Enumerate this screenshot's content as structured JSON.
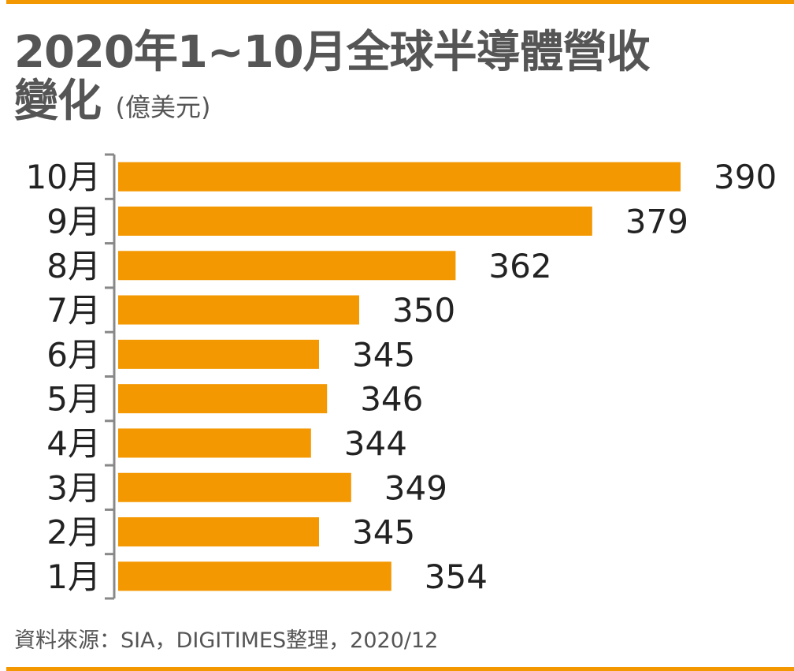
{
  "chart_data": {
    "type": "bar",
    "orientation": "horizontal",
    "title": "2020年1~10月全球半導體營收變化",
    "title_line1": "2020年1~10月全球半導體營收",
    "title_line2": "變化",
    "unit": "(億美元)",
    "categories": [
      "10月",
      "9月",
      "8月",
      "7月",
      "6月",
      "5月",
      "4月",
      "3月",
      "2月",
      "1月"
    ],
    "values": [
      390,
      379,
      362,
      350,
      345,
      346,
      344,
      349,
      345,
      354
    ],
    "xlim": [
      320,
      395
    ],
    "grid": false,
    "bar_color": "#f39800",
    "source": "資料來源：SIA，DIGITIMES整理，2020/12"
  }
}
